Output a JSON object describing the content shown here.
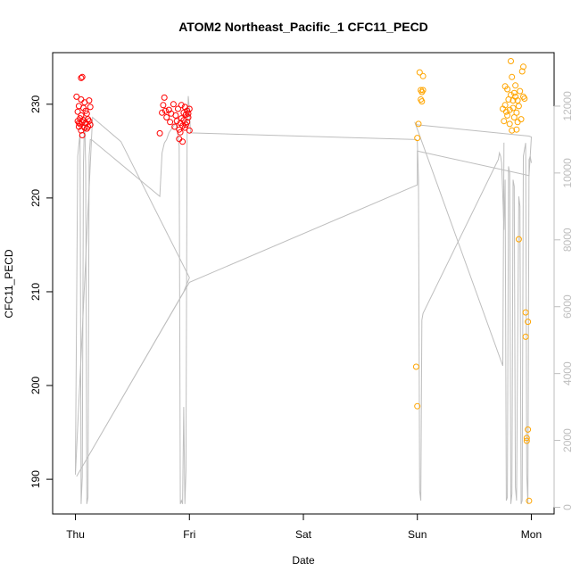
{
  "chart_data": {
    "type": "scatter",
    "title": "ATOM2 Northeast_Pacific_1 CFC11_PECD",
    "xlabel": "Date",
    "ylabel": "CFC11_PECD",
    "y2label": "",
    "x_ticks": [
      {
        "label": "Thu",
        "day": 0
      },
      {
        "label": "Fri",
        "day": 1
      },
      {
        "label": "Sat",
        "day": 2
      },
      {
        "label": "Sun",
        "day": 3
      },
      {
        "label": "Mon",
        "day": 4
      }
    ],
    "xlim": [
      -0.2,
      4.2
    ],
    "ylim": [
      186.3,
      235.5
    ],
    "y_ticks": [
      190,
      200,
      210,
      220,
      230
    ],
    "y2lim": [
      -200,
      13600
    ],
    "y2_ticks": [
      0,
      2000,
      4000,
      6000,
      8000,
      10000,
      12000
    ],
    "grid": false,
    "legend": "none",
    "colors": {
      "series_early": "#ff0000",
      "series_late": "#ffa500",
      "depth_line": "#bebebe",
      "axis": "#000000"
    },
    "series": [
      {
        "color": "#ff0000",
        "marker": "open-circle",
        "points": [
          [
            0.01,
            230.8
          ],
          [
            0.02,
            229.2
          ],
          [
            0.02,
            228.2
          ],
          [
            0.03,
            228.0
          ],
          [
            0.03,
            227.6
          ],
          [
            0.03,
            229.8
          ],
          [
            0.04,
            228.5
          ],
          [
            0.04,
            227.9
          ],
          [
            0.05,
            232.8
          ],
          [
            0.05,
            230.5
          ],
          [
            0.05,
            228.8
          ],
          [
            0.05,
            227.2
          ],
          [
            0.06,
            232.9
          ],
          [
            0.06,
            228.1
          ],
          [
            0.06,
            226.7
          ],
          [
            0.07,
            229.6
          ],
          [
            0.07,
            228.3
          ],
          [
            0.08,
            230.2
          ],
          [
            0.08,
            227.5
          ],
          [
            0.09,
            229.3
          ],
          [
            0.09,
            228.0
          ],
          [
            0.1,
            227.4
          ],
          [
            0.1,
            229.0
          ],
          [
            0.11,
            228.4
          ],
          [
            0.11,
            227.6
          ],
          [
            0.12,
            230.4
          ],
          [
            0.12,
            228.2
          ],
          [
            0.13,
            227.8
          ],
          [
            0.13,
            229.7
          ],
          [
            0.74,
            226.9
          ],
          [
            0.76,
            229.1
          ],
          [
            0.77,
            229.9
          ],
          [
            0.78,
            230.7
          ],
          [
            0.79,
            229.3
          ],
          [
            0.8,
            228.6
          ],
          [
            0.82,
            229.4
          ],
          [
            0.83,
            228.1
          ],
          [
            0.84,
            229.0
          ],
          [
            0.86,
            230.0
          ],
          [
            0.87,
            227.6
          ],
          [
            0.88,
            228.8
          ],
          [
            0.89,
            228.2
          ],
          [
            0.9,
            229.5
          ],
          [
            0.91,
            227.3
          ],
          [
            0.91,
            226.3
          ],
          [
            0.92,
            228.0
          ],
          [
            0.92,
            227.0
          ],
          [
            0.93,
            229.9
          ],
          [
            0.93,
            228.5
          ],
          [
            0.94,
            227.7
          ],
          [
            0.94,
            226.0
          ],
          [
            0.95,
            229.1
          ],
          [
            0.95,
            228.3
          ],
          [
            0.96,
            227.5
          ],
          [
            0.96,
            229.7
          ],
          [
            0.97,
            228.9
          ],
          [
            0.97,
            227.8
          ],
          [
            0.98,
            228.1
          ],
          [
            0.98,
            229.3
          ],
          [
            0.99,
            229.0
          ],
          [
            0.99,
            228.6
          ],
          [
            1.0,
            227.2
          ],
          [
            1.0,
            229.5
          ]
        ]
      },
      {
        "color": "#ffa500",
        "marker": "open-circle",
        "points": [
          [
            2.99,
            202.0
          ],
          [
            3.0,
            197.8
          ],
          [
            3.0,
            226.4
          ],
          [
            3.01,
            227.9
          ],
          [
            3.02,
            233.4
          ],
          [
            3.03,
            231.5
          ],
          [
            3.03,
            230.5
          ],
          [
            3.04,
            231.3
          ],
          [
            3.04,
            230.3
          ],
          [
            3.05,
            233.0
          ],
          [
            3.05,
            231.5
          ],
          [
            3.75,
            229.5
          ],
          [
            3.76,
            228.2
          ],
          [
            3.77,
            231.9
          ],
          [
            3.77,
            229.9
          ],
          [
            3.78,
            229.2
          ],
          [
            3.79,
            231.6
          ],
          [
            3.79,
            228.8
          ],
          [
            3.8,
            230.5
          ],
          [
            3.81,
            227.9
          ],
          [
            3.81,
            229.4
          ],
          [
            3.82,
            234.6
          ],
          [
            3.82,
            231.0
          ],
          [
            3.83,
            232.9
          ],
          [
            3.83,
            227.2
          ],
          [
            3.84,
            230.4
          ],
          [
            3.84,
            229.6
          ],
          [
            3.85,
            231.2
          ],
          [
            3.85,
            228.6
          ],
          [
            3.86,
            232.0
          ],
          [
            3.86,
            230.8
          ],
          [
            3.87,
            229.1
          ],
          [
            3.87,
            227.3
          ],
          [
            3.88,
            230.4
          ],
          [
            3.88,
            228.1
          ],
          [
            3.89,
            215.6
          ],
          [
            3.89,
            229.8
          ],
          [
            3.9,
            231.4
          ],
          [
            3.91,
            228.4
          ],
          [
            3.92,
            233.5
          ],
          [
            3.93,
            234.0
          ],
          [
            3.93,
            230.8
          ],
          [
            3.94,
            230.6
          ],
          [
            3.95,
            205.2
          ],
          [
            3.95,
            207.8
          ],
          [
            3.96,
            194.1
          ],
          [
            3.96,
            194.4
          ],
          [
            3.97,
            206.8
          ],
          [
            3.97,
            195.3
          ],
          [
            3.98,
            187.7
          ]
        ]
      }
    ],
    "depth_line": {
      "color": "#bebebe",
      "points": [
        [
          0.0,
          1050
        ],
        [
          0.02,
          10500
        ],
        [
          0.04,
          11200
        ],
        [
          0.05,
          100
        ],
        [
          0.06,
          900
        ],
        [
          0.07,
          10300
        ],
        [
          0.08,
          11700
        ],
        [
          0.09,
          10200
        ],
        [
          0.1,
          100
        ],
        [
          0.11,
          300
        ],
        [
          0.12,
          10500
        ],
        [
          0.13,
          11000
        ],
        [
          0.14,
          11000
        ],
        [
          0.74,
          9300
        ],
        [
          0.76,
          10600
        ],
        [
          0.78,
          10900
        ],
        [
          0.8,
          11000
        ],
        [
          0.82,
          11200
        ],
        [
          0.84,
          11300
        ],
        [
          0.86,
          11400
        ],
        [
          0.88,
          11500
        ],
        [
          0.9,
          11100
        ],
        [
          0.91,
          10800
        ],
        [
          0.92,
          100
        ],
        [
          0.93,
          200
        ],
        [
          0.94,
          100
        ],
        [
          0.95,
          3000
        ],
        [
          0.96,
          100
        ],
        [
          0.97,
          1100
        ],
        [
          0.98,
          11200
        ],
        [
          0.99,
          12300
        ],
        [
          1.0,
          11900
        ],
        [
          1.01,
          11200
        ],
        [
          2.99,
          11000
        ],
        [
          3.0,
          10950
        ],
        [
          3.01,
          9800
        ],
        [
          3.02,
          500
        ],
        [
          3.03,
          200
        ],
        [
          3.04,
          5600
        ],
        [
          3.05,
          5800
        ],
        [
          3.71,
          10400
        ],
        [
          3.72,
          10600
        ],
        [
          3.73,
          10500
        ],
        [
          3.74,
          10300
        ],
        [
          3.76,
          8300
        ],
        [
          3.77,
          9800
        ],
        [
          3.78,
          200
        ],
        [
          3.79,
          300
        ],
        [
          3.8,
          10200
        ],
        [
          3.81,
          10000
        ],
        [
          3.82,
          100
        ],
        [
          3.83,
          400
        ],
        [
          3.84,
          9800
        ],
        [
          3.85,
          9600
        ],
        [
          3.86,
          600
        ],
        [
          3.87,
          200
        ],
        [
          3.88,
          4800
        ],
        [
          3.89,
          9300
        ],
        [
          3.9,
          9000
        ],
        [
          3.91,
          100
        ],
        [
          3.92,
          200
        ],
        [
          3.93,
          10500
        ],
        [
          3.94,
          10700
        ],
        [
          3.95,
          10900
        ],
        [
          3.96,
          1000
        ],
        [
          3.97,
          100
        ],
        [
          3.98,
          10400
        ],
        [
          3.99,
          10500
        ],
        [
          4.0,
          10300
        ]
      ]
    },
    "track_line": {
      "color": "#bebebe",
      "points": [
        [
          0.0,
          190.5
        ],
        [
          0.15,
          228.6
        ],
        [
          0.4,
          226.0
        ],
        [
          1.0,
          211.5
        ],
        [
          0.95,
          210.0
        ],
        [
          0.01,
          190.3
        ],
        [
          1.0,
          211.0
        ],
        [
          3.0,
          221.4
        ],
        [
          3.0,
          224.0
        ],
        [
          3.0,
          225.0
        ],
        [
          3.98,
          222.4
        ],
        [
          4.0,
          226.5
        ],
        [
          3.98,
          226.6
        ],
        [
          3.0,
          227.8
        ],
        [
          2.98,
          228.0
        ],
        [
          3.75,
          202.1
        ],
        [
          3.76,
          225.9
        ]
      ]
    }
  }
}
